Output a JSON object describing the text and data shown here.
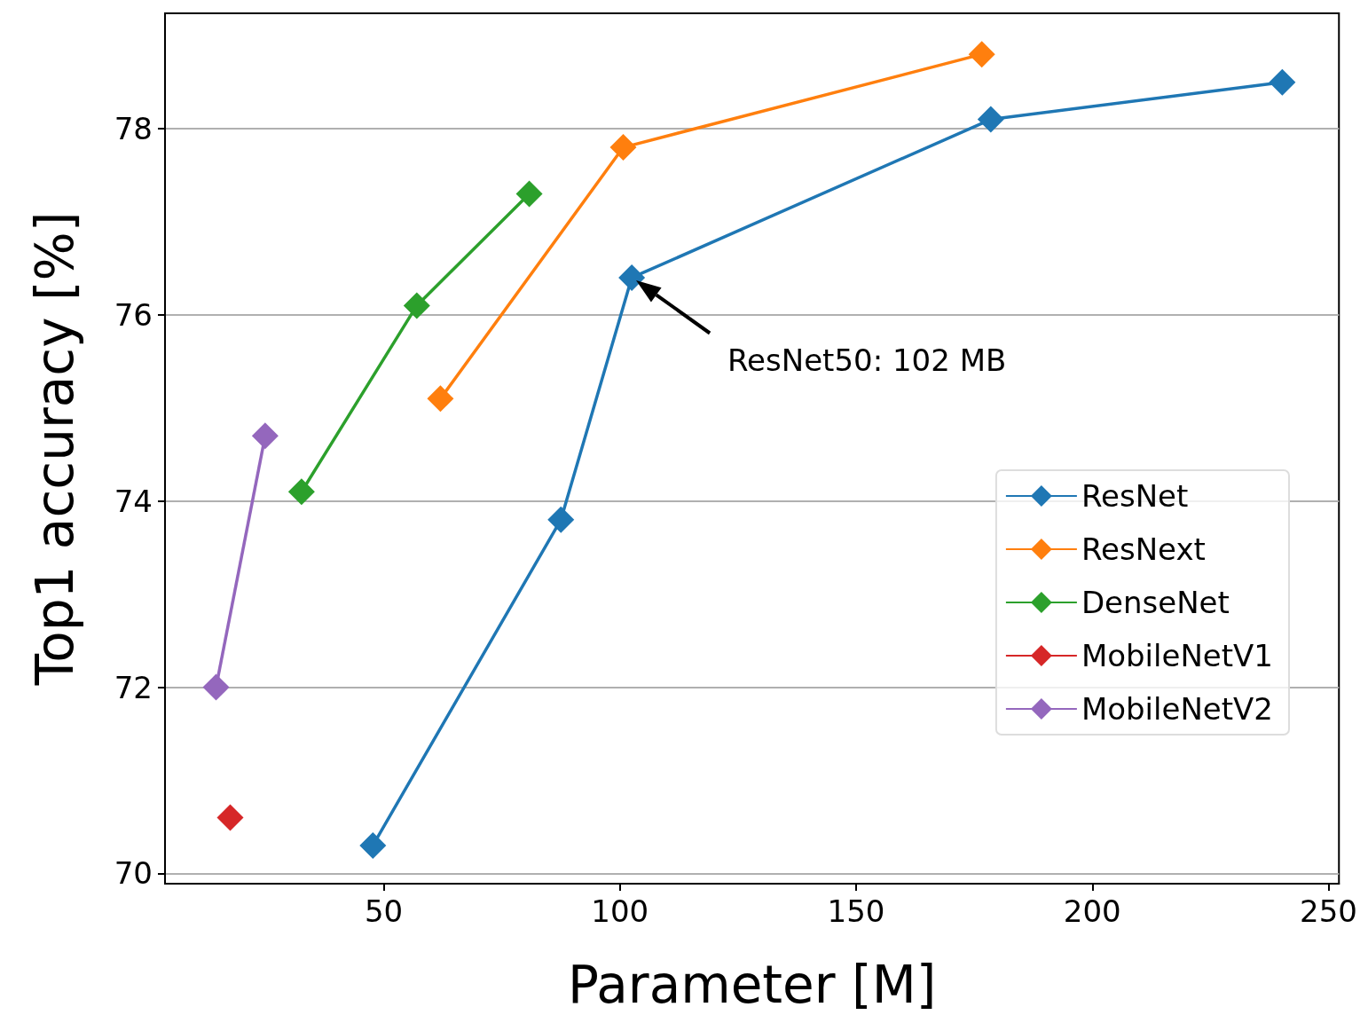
{
  "chart_data": {
    "type": "line",
    "xlabel": "Parameter [M]",
    "ylabel": "Top1 accuracy [%]",
    "xlim": [
      3.7,
      252.2
    ],
    "xticks": [
      50,
      100,
      150,
      200,
      250
    ],
    "ylim": [
      69.89,
      79.24
    ],
    "yticks": [
      70,
      72,
      74,
      76,
      78
    ],
    "grid": "y",
    "legend": "right",
    "marker": "diamond",
    "line_style": "solid",
    "series": [
      {
        "name": "ResNet",
        "color": "#1f77b4",
        "x": [
          47.7,
          87.5,
          102.5,
          178.5,
          240.2
        ],
        "values": [
          70.3,
          73.8,
          76.4,
          78.1,
          78.5
        ]
      },
      {
        "name": "ResNext",
        "color": "#ff7f0e",
        "x": [
          62,
          100.7,
          176.6
        ],
        "values": [
          75.1,
          77.8,
          78.8
        ]
      },
      {
        "name": "DenseNet",
        "color": "#2ca02c",
        "x": [
          32.6,
          57,
          80.8
        ],
        "values": [
          74.1,
          76.1,
          77.3
        ]
      },
      {
        "name": "MobileNetV1",
        "color": "#d62728",
        "x": [
          17.5
        ],
        "values": [
          70.6
        ]
      },
      {
        "name": "MobileNetV2",
        "color": "#9467bd",
        "x": [
          14.5,
          24.9
        ],
        "values": [
          72.0,
          74.7
        ]
      }
    ],
    "annotations": [
      "ResNet50: 102 MB"
    ]
  }
}
